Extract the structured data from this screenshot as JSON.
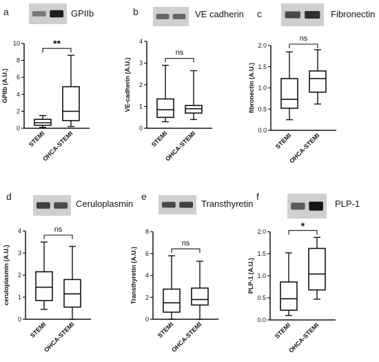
{
  "chart_data": [
    {
      "panel": "a",
      "type": "box",
      "title": "GPIIb",
      "ylabel": "GPIIb (A.U.)",
      "ylim": [
        0,
        10
      ],
      "yticks": [
        0,
        2,
        4,
        6,
        8,
        10
      ],
      "categories": [
        "STEMI",
        "OHCA-STEMI"
      ],
      "boxes": [
        {
          "min": 0.1,
          "q1": 0.35,
          "median": 0.65,
          "q3": 1.05,
          "max": 1.5
        },
        {
          "min": 0.2,
          "q1": 0.9,
          "median": 2.0,
          "q3": 4.9,
          "max": 8.6
        }
      ],
      "significance": "**",
      "blot": {
        "bands": [
          0.45,
          0.95
        ]
      }
    },
    {
      "panel": "b",
      "type": "box",
      "title": "VE cadherin",
      "ylabel": "VE-cadherin (A.U.)",
      "ylim": [
        0,
        4
      ],
      "yticks": [
        0,
        1,
        2,
        3,
        4
      ],
      "categories": [
        "STEMI",
        "OHCA-STEMI"
      ],
      "boxes": [
        {
          "min": 0.3,
          "q1": 0.5,
          "median": 0.85,
          "q3": 1.35,
          "max": 2.9
        },
        {
          "min": 0.4,
          "q1": 0.7,
          "median": 0.9,
          "q3": 1.05,
          "max": 2.65
        }
      ],
      "significance": "ns",
      "blot": {
        "bands": [
          0.55,
          0.55
        ]
      }
    },
    {
      "panel": "c",
      "type": "box",
      "title": "Fibronectin",
      "ylabel": "fibronectin (A.U.)",
      "ylim": [
        0,
        2.0
      ],
      "yticks": [
        "0.0",
        "0.5",
        "1.0",
        "1.5",
        "2.0"
      ],
      "categories": [
        "STEMI",
        "OHCA-STEMI"
      ],
      "boxes": [
        {
          "min": 0.25,
          "q1": 0.52,
          "median": 0.73,
          "q3": 1.22,
          "max": 1.85
        },
        {
          "min": 0.62,
          "q1": 0.9,
          "median": 1.22,
          "q3": 1.4,
          "max": 1.9
        }
      ],
      "significance": "ns",
      "blot": {
        "bands": [
          0.7,
          0.85
        ]
      }
    },
    {
      "panel": "d",
      "type": "box",
      "title": "Ceruloplasmin",
      "ylabel": "ceruloplasmin (A.U.)",
      "ylim": [
        0,
        4
      ],
      "yticks": [
        0,
        1,
        2,
        3,
        4
      ],
      "categories": [
        "STEMI",
        "OHCA-STEMI"
      ],
      "boxes": [
        {
          "min": 0.45,
          "q1": 0.85,
          "median": 1.45,
          "q3": 2.15,
          "max": 3.5
        },
        {
          "min": 0.0,
          "q1": 0.55,
          "median": 1.15,
          "q3": 1.8,
          "max": 3.3
        }
      ],
      "significance": "ns",
      "blot": {
        "bands": [
          0.75,
          0.7
        ]
      }
    },
    {
      "panel": "e",
      "type": "box",
      "title": "Transthyretin",
      "ylabel": "Transthyretin (A.U.)",
      "ylim": [
        0,
        8
      ],
      "yticks": [
        0,
        2,
        4,
        6,
        8
      ],
      "categories": [
        "STEMI",
        "OHCA-STEMI"
      ],
      "boxes": [
        {
          "min": 0.0,
          "q1": 0.65,
          "median": 1.5,
          "q3": 2.75,
          "max": 5.8
        },
        {
          "min": 0.0,
          "q1": 1.3,
          "median": 1.8,
          "q3": 2.85,
          "max": 5.3
        }
      ],
      "significance": "ns",
      "blot": {
        "bands": [
          0.7,
          0.75
        ]
      }
    },
    {
      "panel": "f",
      "type": "box",
      "title": "PLP-1",
      "ylabel": "PLP-1 (A.U.)",
      "ylim": [
        0,
        2.0
      ],
      "yticks": [
        "0.0",
        "0.5",
        "1.0",
        "1.5",
        "2.0"
      ],
      "categories": [
        "STEMI",
        "OHCA-STEMI"
      ],
      "boxes": [
        {
          "min": 0.1,
          "q1": 0.22,
          "median": 0.48,
          "q3": 0.86,
          "max": 1.52
        },
        {
          "min": 0.47,
          "q1": 0.68,
          "median": 1.04,
          "q3": 1.62,
          "max": 1.87
        }
      ],
      "significance": "*",
      "blot": {
        "bands": [
          0.6,
          1.0
        ]
      }
    }
  ]
}
